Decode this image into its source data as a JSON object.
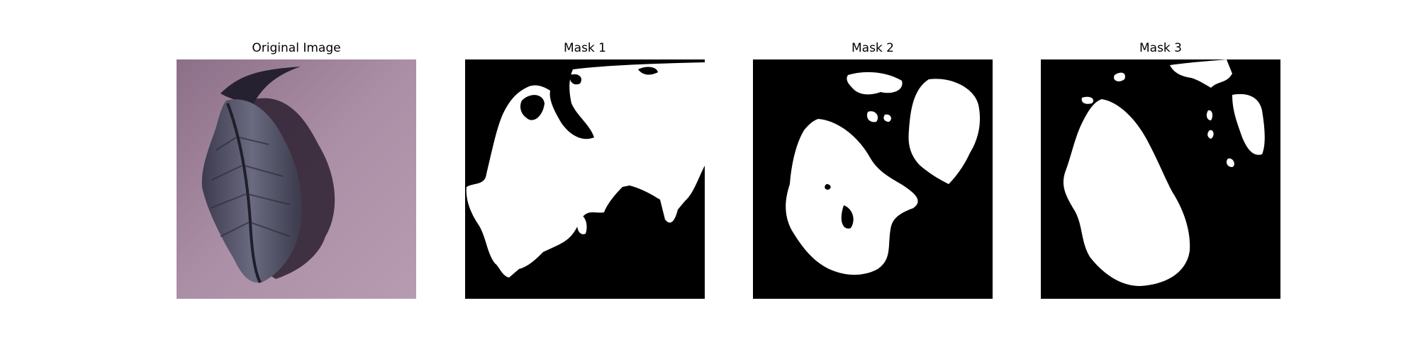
{
  "figure": {
    "panels": [
      {
        "title": "Original Image",
        "kind": "photo",
        "subject": "leaf"
      },
      {
        "title": "Mask 1",
        "kind": "binary-mask"
      },
      {
        "title": "Mask 2",
        "kind": "binary-mask"
      },
      {
        "title": "Mask 3",
        "kind": "binary-mask"
      }
    ],
    "colors": {
      "mask_foreground": "#ffffff",
      "mask_background": "#000000",
      "photo_background": "#a98ca3",
      "leaf": "#4a4a5c",
      "shadow": "#2a1f2e"
    }
  }
}
